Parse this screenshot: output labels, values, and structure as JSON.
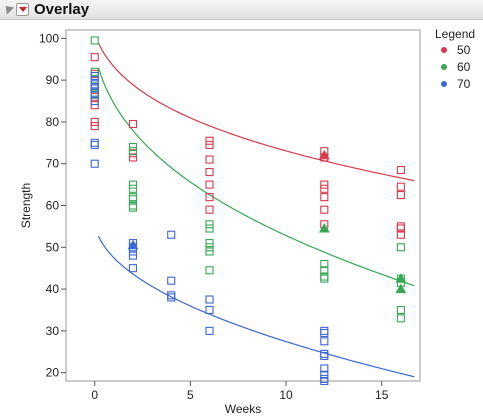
{
  "report": {
    "title": "Overlay",
    "icons": {
      "disclosure": "disclosure-triangle-icon",
      "menu": "red-menu-triangle-icon"
    }
  },
  "chart_data": {
    "type": "scatter",
    "xlabel": "Weeks",
    "ylabel": "Strength",
    "xlim": [
      -1.5,
      17
    ],
    "ylim": [
      18,
      102
    ],
    "xticks": [
      0,
      5,
      10,
      15
    ],
    "yticks": [
      20,
      30,
      40,
      50,
      60,
      70,
      80,
      90,
      100
    ],
    "grid": false,
    "legend_title": "Legend",
    "legend_position": "right",
    "series": [
      {
        "name": "50",
        "color": "#d63a4c",
        "points": [
          [
            0,
            95.5
          ],
          [
            0,
            91.5
          ],
          [
            0,
            88
          ],
          [
            0,
            86
          ],
          [
            0,
            84
          ],
          [
            0,
            80
          ],
          [
            0,
            79
          ],
          [
            2,
            79.5
          ],
          [
            2,
            72.5
          ],
          [
            2,
            71.5
          ],
          [
            6,
            75.5
          ],
          [
            6,
            74.5
          ],
          [
            6,
            71
          ],
          [
            6,
            68
          ],
          [
            6,
            65
          ],
          [
            6,
            62
          ],
          [
            6,
            59
          ],
          [
            12,
            73
          ],
          [
            12,
            71.5
          ],
          [
            12,
            65
          ],
          [
            12,
            64
          ],
          [
            12,
            62
          ],
          [
            12,
            59
          ],
          [
            12,
            55.5
          ],
          [
            16,
            68.5
          ],
          [
            16,
            64.5
          ],
          [
            16,
            62.5
          ],
          [
            16,
            55
          ],
          [
            16,
            54.5
          ],
          [
            16,
            53
          ]
        ],
        "means": [
          [
            12,
            72
          ]
        ],
        "fit": {
          "a": 102,
          "b": 4.6,
          "c": 6
        }
      },
      {
        "name": "60",
        "color": "#34a853",
        "points": [
          [
            0,
            99.5
          ],
          [
            0,
            92
          ],
          [
            0,
            88.5
          ],
          [
            0,
            87
          ],
          [
            0,
            86.5
          ],
          [
            2,
            74
          ],
          [
            2,
            73
          ],
          [
            2,
            65
          ],
          [
            2,
            64
          ],
          [
            2,
            62
          ],
          [
            2,
            61.5
          ],
          [
            2,
            60
          ],
          [
            2,
            59.5
          ],
          [
            6,
            55.5
          ],
          [
            6,
            54.5
          ],
          [
            6,
            51
          ],
          [
            6,
            50
          ],
          [
            6,
            49
          ],
          [
            6,
            44.5
          ],
          [
            12,
            46
          ],
          [
            12,
            44.5
          ],
          [
            12,
            43
          ],
          [
            12,
            42.5
          ],
          [
            16,
            50
          ],
          [
            16,
            42.5
          ],
          [
            16,
            41.5
          ],
          [
            16,
            35
          ],
          [
            16,
            33
          ]
        ],
        "means": [
          [
            12,
            54.5
          ],
          [
            16,
            42.5
          ],
          [
            16,
            40
          ]
        ],
        "fit": {
          "a": 98.5,
          "b": 9.9,
          "c": 6
        }
      },
      {
        "name": "70",
        "color": "#3a66d6",
        "points": [
          [
            0,
            91
          ],
          [
            0,
            90
          ],
          [
            0,
            89
          ],
          [
            0,
            88
          ],
          [
            0,
            87
          ],
          [
            0,
            85
          ],
          [
            0,
            75
          ],
          [
            0,
            74.5
          ],
          [
            0,
            70
          ],
          [
            2,
            51
          ],
          [
            2,
            50
          ],
          [
            2,
            49
          ],
          [
            2,
            48
          ],
          [
            2,
            45
          ],
          [
            4,
            53
          ],
          [
            4,
            42
          ],
          [
            4,
            38.5
          ],
          [
            4,
            38
          ],
          [
            6,
            37.5
          ],
          [
            6,
            35
          ],
          [
            6,
            30
          ],
          [
            12,
            30
          ],
          [
            12,
            29.5
          ],
          [
            12,
            27.5
          ],
          [
            12,
            24.5
          ],
          [
            12,
            24
          ],
          [
            12,
            21
          ],
          [
            12,
            19.5
          ],
          [
            12,
            18.5
          ],
          [
            12,
            18
          ]
        ],
        "means": [
          [
            2,
            50.5
          ]
        ],
        "fit": {
          "a": 56.7,
          "b": 8.8,
          "c": 0.6
        }
      }
    ]
  }
}
